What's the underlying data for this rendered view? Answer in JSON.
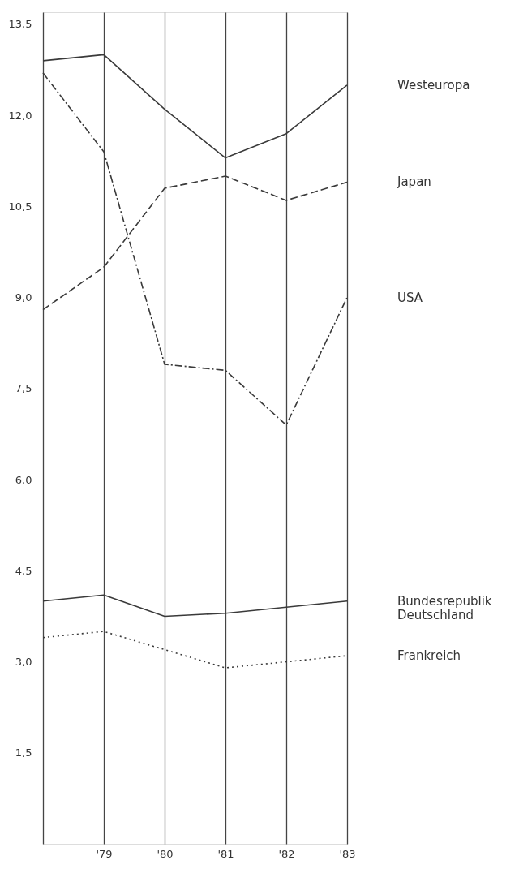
{
  "chart_data": {
    "type": "line",
    "categories": [
      null,
      "'79",
      "'80",
      "'81",
      "'82",
      "'83"
    ],
    "series": [
      {
        "name": "Westeuropa",
        "color": "#3a3a3a",
        "line_style": "solid",
        "values": [
          12.9,
          13.0,
          12.1,
          11.3,
          11.7,
          12.5
        ]
      },
      {
        "name": "Japan",
        "color": "#3a3a3a",
        "line_style": "dashed",
        "values": [
          8.8,
          9.5,
          10.8,
          11.0,
          10.6,
          10.9
        ]
      },
      {
        "name": "USA",
        "color": "#3a3a3a",
        "line_style": "dashdot",
        "values": [
          12.7,
          11.4,
          7.9,
          7.8,
          6.9,
          9.0
        ]
      },
      {
        "name": "Bundesrepublik\nDeutschland",
        "color": "#3a3a3a",
        "line_style": "solid",
        "values": [
          4.0,
          4.1,
          3.75,
          3.8,
          3.9,
          4.0
        ]
      },
      {
        "name": "Frankreich",
        "color": "#3a3a3a",
        "line_style": "dotted",
        "values": [
          3.4,
          3.5,
          3.2,
          2.9,
          3.0,
          3.1
        ]
      }
    ],
    "ylim": [
      0,
      13.7
    ],
    "yticks": [
      {
        "value": 1.5,
        "label": "1,5"
      },
      {
        "value": 3.0,
        "label": "3,0"
      },
      {
        "value": 4.5,
        "label": "4,5"
      },
      {
        "value": 6.0,
        "label": "6,0"
      },
      {
        "value": 7.5,
        "label": "7,5"
      },
      {
        "value": 9.0,
        "label": "9,0"
      },
      {
        "value": 10.5,
        "label": "10,5"
      },
      {
        "value": 12.0,
        "label": "12,0"
      },
      {
        "value": 13.5,
        "label": "13,5"
      }
    ],
    "grid": "x",
    "marker": "none"
  }
}
